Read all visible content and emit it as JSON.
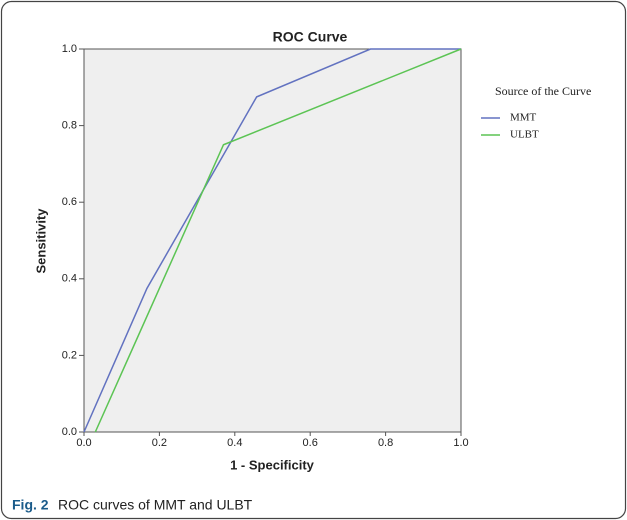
{
  "chart_data": {
    "type": "line",
    "title": "ROC Curve",
    "x_label": "1 - Specificity",
    "y_label": "Sensitivity",
    "legend_title": "Source of the Curve",
    "legend": "right",
    "xlim": [
      0,
      1
    ],
    "ylim": [
      0,
      1
    ],
    "xticks": [
      {
        "value": 0,
        "label": "0.0"
      },
      0.2,
      0.4,
      0.6,
      0.8,
      {
        "value": 1,
        "label": "1.0"
      }
    ],
    "yticks": [
      {
        "value": 0,
        "label": "0.0"
      },
      0.2,
      0.4,
      0.6,
      0.8,
      {
        "value": 1,
        "label": "1.0"
      }
    ],
    "series": [
      {
        "name": "MMT",
        "color": "#6272c0",
        "x": [
          0,
          0.167,
          0.458,
          0.76,
          1
        ],
        "values": [
          0,
          0.375,
          0.875,
          1,
          1
        ]
      },
      {
        "name": "ULBT",
        "color": "#5cc454",
        "x": [
          0.03,
          0.37,
          1
        ],
        "values": [
          0,
          0.75,
          1
        ]
      }
    ]
  },
  "caption": {
    "label": "Fig. 2",
    "text": "ROC curves of MMT and ULBT"
  }
}
